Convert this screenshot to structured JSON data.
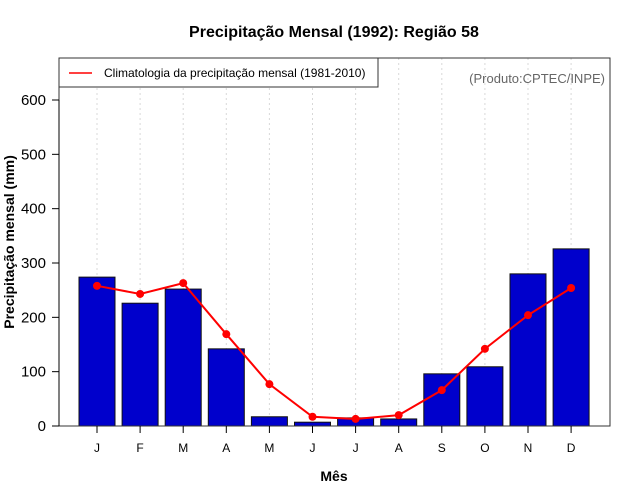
{
  "chart_data": {
    "type": "bar",
    "title": "Precipitação Mensal (1992): Região 58",
    "xlabel": "Mês",
    "ylabel": "Precipitação mensal (mm)",
    "ylim": [
      0,
      600
    ],
    "yticks": [
      0,
      100,
      200,
      300,
      400,
      500,
      600
    ],
    "categories": [
      "J",
      "F",
      "M",
      "A",
      "M",
      "J",
      "J",
      "A",
      "S",
      "O",
      "N",
      "D"
    ],
    "grid": "vertical dotted",
    "series": [
      {
        "name": "Precipitação mensal (1992)",
        "type": "bar",
        "color": "#0000CC",
        "values": [
          274,
          226,
          252,
          142,
          17,
          7,
          15,
          13,
          96,
          109,
          280,
          326
        ]
      },
      {
        "name": "Climatologia da precipitação mensal (1981-2010)",
        "type": "line",
        "color": "#FF0000",
        "values": [
          258,
          243,
          263,
          169,
          77,
          17,
          13,
          20,
          66,
          142,
          204,
          254
        ]
      }
    ],
    "legend": {
      "position": "top-left",
      "entries": [
        "Climatologia da precipitação mensal (1981-2010)"
      ]
    },
    "annotation": "(Produto:CPTEC/INPE)"
  }
}
